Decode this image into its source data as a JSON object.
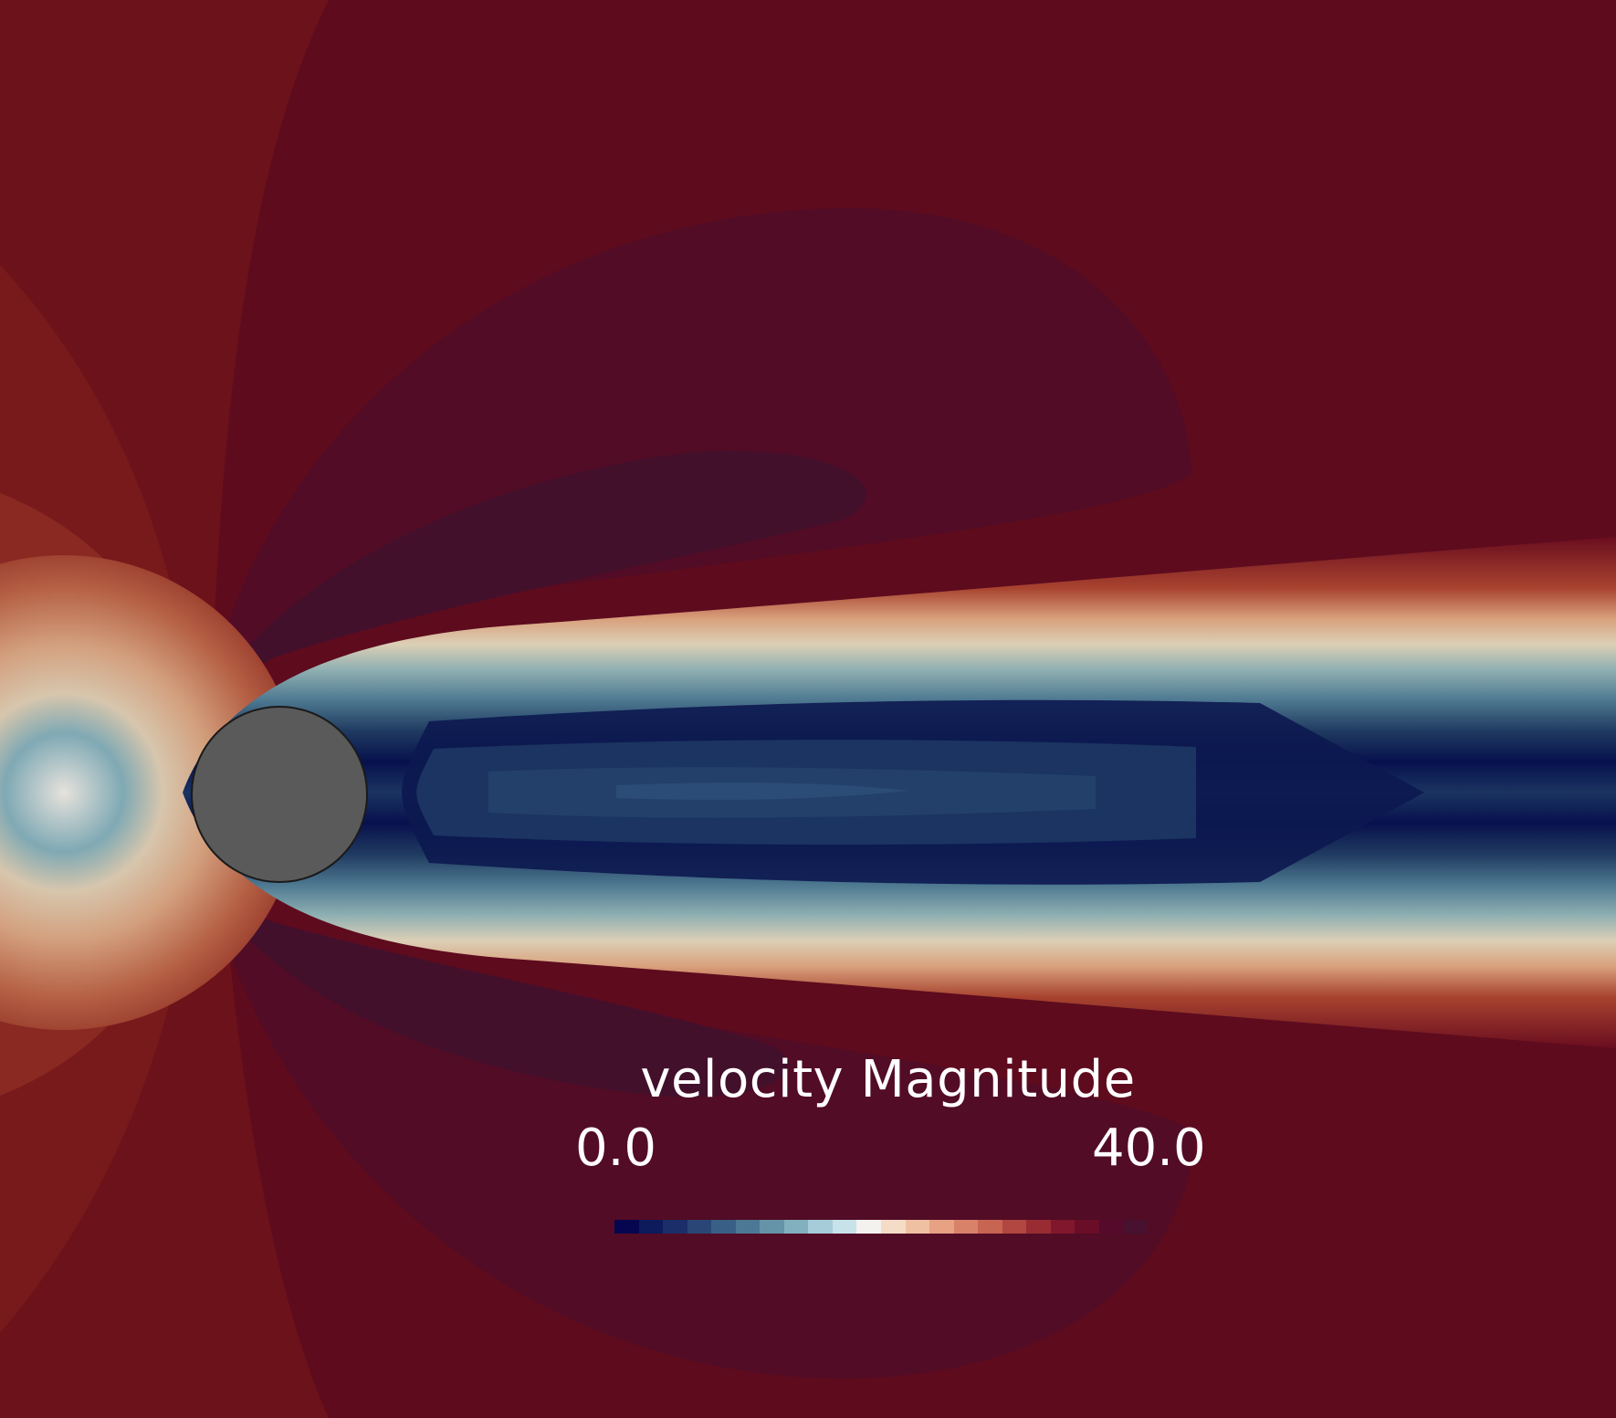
{
  "legend": {
    "title": "velocity Magnitude",
    "min_label": "0.0",
    "max_label": "40.0",
    "range": [
      0.0,
      40.0
    ],
    "colormap": [
      "#05064f",
      "#0d1a5c",
      "#1b2e6a",
      "#2a4677",
      "#3a5f86",
      "#4d7895",
      "#6594a8",
      "#82b0bf",
      "#a5ccd8",
      "#c8e2ea",
      "#f3f2ee",
      "#f5dcc6",
      "#efc1a2",
      "#e6a283",
      "#d9826a",
      "#c86452",
      "#b24640",
      "#992b33",
      "#80172c",
      "#6a0d27",
      "#560a2b",
      "#47112f"
    ]
  },
  "scene": {
    "background_color": "#5e0b1e",
    "cylinder_color": "#5a5a5a"
  }
}
